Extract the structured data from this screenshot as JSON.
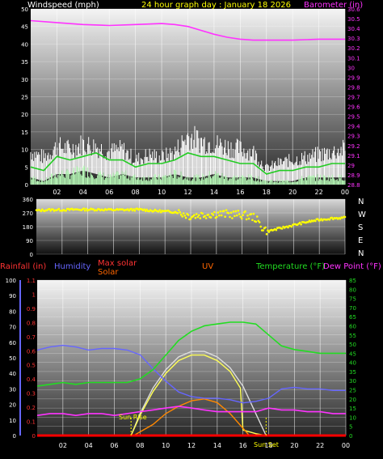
{
  "header": {
    "wind_label": "Windspeed (mph)",
    "date_title": "24 hour graph day : January 18 2026",
    "barometer_label": "Barometer (in)"
  },
  "middle": {
    "compass": [
      "N",
      "W",
      "S",
      "E",
      "N"
    ]
  },
  "bottom_labels": {
    "rainfall": "Rainfall (in)",
    "humidity": "Humidity",
    "max_solar": "Max solar",
    "solar": "Solar",
    "uv": "UV",
    "temperature": "Temperature (°F)",
    "dew_point": "Dew Point (°F)",
    "sun_rise": "Sun Rise",
    "sun_set": "Sun Set"
  },
  "colors": {
    "wind": "#ffffff",
    "wind_avg": "#22cc22",
    "wind_low": "#bbffbb",
    "barometer": "#ff33ff",
    "direction": "#ffff00",
    "rain": "#ff0000",
    "humidity": "#6666ff",
    "max_solar": "#dddddd",
    "solar": "#ffff55",
    "uv": "#ff8800",
    "temperature": "#22dd22",
    "dew_point": "#ff33ff",
    "label_red": "#ff3333",
    "label_yellow": "#ffff00",
    "label_orange": "#ff6600"
  },
  "chart_data": [
    {
      "type": "line",
      "title": "24 hour graph day : January 18 2026",
      "x_ticks": [
        "02",
        "04",
        "06",
        "08",
        "10",
        "12",
        "14",
        "16",
        "18",
        "20",
        "22",
        "00"
      ],
      "y_left_label": "Windspeed (mph)",
      "y_left_ticks": [
        "0",
        "5",
        "10",
        "15",
        "20",
        "25",
        "30",
        "35",
        "40",
        "45",
        "50"
      ],
      "y_right_label": "Barometer (in)",
      "y_right_ticks": [
        "28.8",
        "28.9",
        "29",
        "29.1",
        "29.2",
        "29.3",
        "29.4",
        "29.5",
        "29.6",
        "29.7",
        "29.8",
        "29.9",
        "30",
        "30.1",
        "30.2",
        "30.3",
        "30.4",
        "30.5",
        "30.6"
      ],
      "series": [
        {
          "name": "Barometer (in)",
          "axis": "right",
          "x": [
            0,
            2,
            4,
            6,
            8,
            10,
            11,
            12,
            13,
            14,
            15,
            16,
            17,
            18,
            20,
            22,
            24
          ],
          "y": [
            30.48,
            30.46,
            30.44,
            30.43,
            30.44,
            30.45,
            30.44,
            30.42,
            30.38,
            30.34,
            30.31,
            30.29,
            30.28,
            30.28,
            30.28,
            30.29,
            30.29
          ]
        },
        {
          "name": "Wind gust",
          "axis": "left",
          "x": [
            0,
            1,
            2,
            3,
            4,
            5,
            6,
            7,
            8,
            9,
            10,
            11,
            12,
            13,
            14,
            15,
            16,
            17,
            18,
            19,
            20,
            21,
            22,
            23,
            24
          ],
          "y": [
            12,
            10,
            14,
            13,
            15,
            14,
            12,
            13,
            9,
            11,
            10,
            12,
            18,
            16,
            15,
            14,
            13,
            12,
            6,
            8,
            9,
            10,
            11,
            12,
            13
          ]
        },
        {
          "name": "Wind avg",
          "axis": "left",
          "x": [
            0,
            1,
            2,
            3,
            4,
            5,
            6,
            7,
            8,
            9,
            10,
            11,
            12,
            13,
            14,
            15,
            16,
            17,
            18,
            19,
            20,
            21,
            22,
            23,
            24
          ],
          "y": [
            5,
            4,
            8,
            7,
            8,
            9,
            7,
            7,
            5,
            6,
            6,
            7,
            9,
            8,
            8,
            7,
            6,
            6,
            3,
            4,
            4,
            5,
            5,
            6,
            6
          ]
        },
        {
          "name": "Wind low",
          "axis": "left",
          "x": [
            0,
            1,
            2,
            3,
            4,
            5,
            6,
            7,
            8,
            9,
            10,
            11,
            12,
            13,
            14,
            15,
            16,
            17,
            18,
            19,
            20,
            21,
            22,
            23,
            24
          ],
          "y": [
            2,
            1,
            3,
            3,
            4,
            3,
            2,
            3,
            2,
            2,
            2,
            3,
            2,
            2,
            3,
            2,
            2,
            2,
            1,
            1,
            1,
            2,
            2,
            2,
            2
          ]
        }
      ]
    },
    {
      "type": "scatter",
      "title": "",
      "x_ticks": [
        "02",
        "04",
        "06",
        "08",
        "10",
        "12",
        "14",
        "16",
        "18",
        "20",
        "22",
        "00"
      ],
      "y_ticks": [
        "0",
        "90",
        "180",
        "270",
        "360"
      ],
      "series": [
        {
          "name": "Wind direction",
          "x": [
            0,
            1,
            2,
            3,
            4,
            5,
            6,
            7,
            8,
            9,
            10,
            11,
            12,
            13,
            14,
            15,
            16,
            17,
            17.5,
            18,
            19,
            20,
            21,
            22,
            23,
            24
          ],
          "y": [
            285,
            290,
            290,
            292,
            292,
            292,
            290,
            290,
            292,
            285,
            280,
            275,
            250,
            260,
            265,
            262,
            258,
            240,
            180,
            150,
            170,
            190,
            210,
            225,
            235,
            238
          ]
        }
      ]
    },
    {
      "type": "line",
      "title": "",
      "x_ticks": [
        "02",
        "04",
        "06",
        "08",
        "10",
        "12",
        "14",
        "16",
        "18",
        "20",
        "22",
        "00"
      ],
      "y_left_ticks": [
        "0",
        "10",
        "20",
        "30",
        "40",
        "50",
        "60",
        "70",
        "80",
        "90",
        "100"
      ],
      "y_rain_ticks": [
        "0",
        "0.1",
        "0.2",
        "0.3",
        "0.4",
        "0.5",
        "0.6",
        "0.7",
        "0.8",
        "0.9",
        "1",
        "1.1"
      ],
      "y_right_ticks": [
        "0",
        "5",
        "10",
        "15",
        "20",
        "25",
        "30",
        "35",
        "40",
        "45",
        "50",
        "55",
        "60",
        "65",
        "70",
        "75",
        "80",
        "85"
      ],
      "series": [
        {
          "name": "Humidity",
          "axis": "left",
          "x": [
            0,
            1,
            2,
            3,
            4,
            5,
            6,
            7,
            8,
            9,
            10,
            11,
            12,
            13,
            14,
            15,
            16,
            17,
            18,
            19,
            20,
            21,
            22,
            23,
            24
          ],
          "y": [
            55,
            57,
            58,
            57,
            55,
            56,
            56,
            55,
            52,
            43,
            35,
            28,
            25,
            24,
            24,
            23,
            21,
            22,
            24,
            30,
            31,
            30,
            30,
            29,
            29
          ]
        },
        {
          "name": "Temperature (°F)",
          "axis": "right",
          "x": [
            0,
            1,
            2,
            3,
            4,
            5,
            6,
            7,
            8,
            9,
            10,
            11,
            12,
            13,
            14,
            15,
            16,
            17,
            18,
            19,
            20,
            21,
            22,
            23,
            24
          ],
          "y": [
            27,
            28,
            29,
            28,
            29,
            29,
            29,
            29,
            31,
            36,
            44,
            52,
            57,
            60,
            61,
            62,
            62,
            61,
            55,
            49,
            47,
            46,
            45,
            45,
            45
          ]
        },
        {
          "name": "Dew Point (°F)",
          "axis": "right",
          "x": [
            0,
            1,
            2,
            3,
            4,
            5,
            6,
            7,
            8,
            9,
            10,
            11,
            12,
            13,
            14,
            15,
            16,
            17,
            18,
            19,
            20,
            21,
            22,
            23,
            24
          ],
          "y": [
            11,
            12,
            12,
            11,
            12,
            12,
            11,
            12,
            13,
            14,
            15,
            16,
            15,
            14,
            13,
            13,
            13,
            13,
            15,
            14,
            14,
            13,
            13,
            12,
            12
          ]
        },
        {
          "name": "Max solar",
          "axis": "right",
          "x": [
            7.3,
            8,
            9,
            10,
            11,
            12,
            13,
            14,
            15,
            16,
            17,
            17.8
          ],
          "y": [
            0,
            12,
            26,
            36,
            43,
            46,
            46,
            43,
            37,
            27,
            12,
            0
          ]
        },
        {
          "name": "Solar",
          "axis": "right",
          "x": [
            7.3,
            8,
            9,
            10,
            11,
            12,
            13,
            14,
            15,
            15.8,
            16,
            17,
            17.8
          ],
          "y": [
            0,
            11,
            24,
            34,
            41,
            44,
            44,
            41,
            35,
            26,
            3,
            1,
            0
          ]
        },
        {
          "name": "UV",
          "axis": "right",
          "x": [
            7.5,
            8,
            9,
            10,
            11,
            12,
            13,
            14,
            15,
            16,
            16.5
          ],
          "y": [
            0,
            2,
            6,
            12,
            16,
            19,
            20,
            18,
            12,
            4,
            0
          ]
        },
        {
          "name": "Rainfall (in)",
          "axis": "rain",
          "x": [
            0,
            24
          ],
          "y": [
            0,
            0
          ]
        }
      ]
    }
  ]
}
